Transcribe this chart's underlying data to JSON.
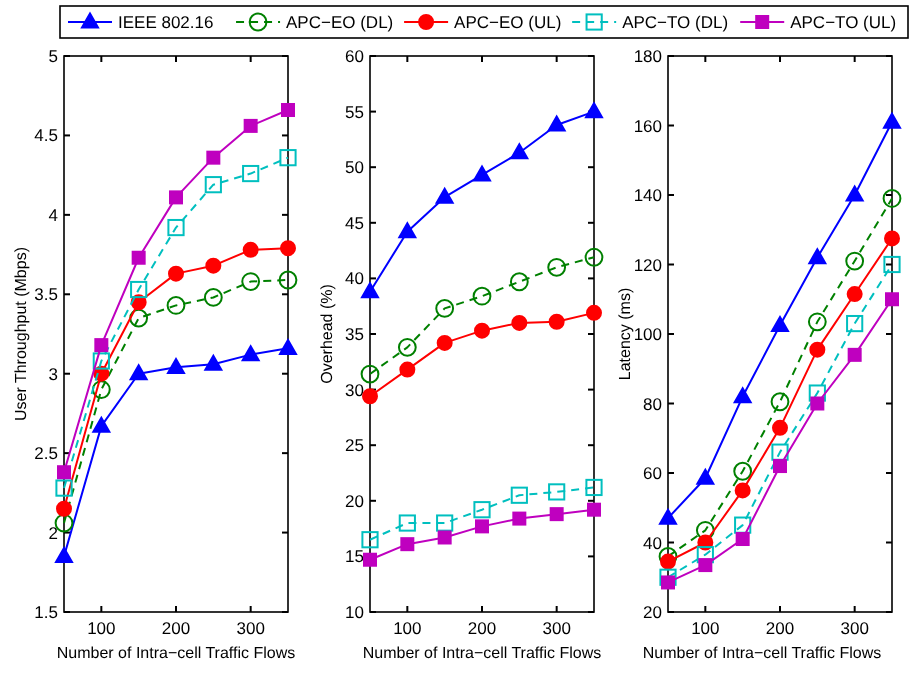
{
  "chart_data": [
    {
      "type": "line",
      "xlabel": "Number of Intra−cell Traffic Flows",
      "ylabel": "User Throughput (Mbps)",
      "x": [
        50,
        100,
        150,
        200,
        250,
        300,
        350
      ],
      "xlim": [
        50,
        350
      ],
      "xticks": [
        100,
        200,
        300
      ],
      "ylim": [
        1.5,
        5
      ],
      "yticks": [
        1.5,
        2,
        2.5,
        3,
        3.5,
        4,
        4.5,
        5
      ],
      "legend": "top",
      "series": [
        {
          "name": "IEEE 802.16",
          "color": "#0000ff",
          "marker": "triangle",
          "line_style": "solid",
          "values": [
            1.85,
            2.67,
            3.0,
            3.04,
            3.06,
            3.12,
            3.16
          ]
        },
        {
          "name": "APC−EO (DL)",
          "color": "#008000",
          "marker": "circle",
          "line_style": "dashed",
          "values": [
            2.06,
            2.9,
            3.35,
            3.43,
            3.48,
            3.58,
            3.59
          ]
        },
        {
          "name": "APC−EO (UL)",
          "color": "#ff0000",
          "marker": "circle",
          "line_style": "solid",
          "values": [
            2.15,
            3.0,
            3.45,
            3.63,
            3.68,
            3.78,
            3.79
          ]
        },
        {
          "name": "APC−TO (DL)",
          "color": "#00bfbf",
          "marker": "square",
          "line_style": "dashed",
          "values": [
            2.28,
            3.08,
            3.53,
            3.92,
            4.19,
            4.26,
            4.36
          ]
        },
        {
          "name": "APC−TO (UL)",
          "color": "#bf00bf",
          "marker": "square",
          "line_style": "solid",
          "values": [
            2.38,
            3.18,
            3.73,
            4.11,
            4.36,
            4.56,
            4.66
          ]
        }
      ]
    },
    {
      "type": "line",
      "xlabel": "Number of Intra−cell Traffic Flows",
      "ylabel": "Overhead (%)",
      "x": [
        50,
        100,
        150,
        200,
        250,
        300,
        350
      ],
      "xlim": [
        50,
        350
      ],
      "xticks": [
        100,
        200,
        300
      ],
      "ylim": [
        10,
        60
      ],
      "yticks": [
        10,
        15,
        20,
        25,
        30,
        35,
        40,
        45,
        50,
        55,
        60
      ],
      "series": [
        {
          "color": "#0000ff",
          "marker": "triangle",
          "line_style": "solid",
          "values": [
            38.8,
            44.2,
            47.3,
            49.3,
            51.3,
            53.8,
            55
          ]
        },
        {
          "color": "#008000",
          "marker": "circle",
          "line_style": "dashed",
          "values": [
            31.4,
            33.8,
            37.3,
            38.4,
            39.7,
            41,
            41.9
          ]
        },
        {
          "color": "#ff0000",
          "marker": "circle",
          "line_style": "solid",
          "values": [
            29.4,
            31.8,
            34.2,
            35.3,
            36,
            36.1,
            36.9
          ]
        },
        {
          "color": "#00bfbf",
          "marker": "square",
          "line_style": "dashed",
          "values": [
            16.5,
            18,
            18,
            19.2,
            20.5,
            20.8,
            21.2
          ]
        },
        {
          "color": "#bf00bf",
          "marker": "square",
          "line_style": "solid",
          "values": [
            14.7,
            16.1,
            16.7,
            17.7,
            18.4,
            18.8,
            19.2
          ]
        }
      ]
    },
    {
      "type": "line",
      "xlabel": "Number of Intra−cell Traffic Flows",
      "ylabel": "Latency (ms)",
      "x": [
        50,
        100,
        150,
        200,
        250,
        300,
        350
      ],
      "xlim": [
        50,
        350
      ],
      "xticks": [
        100,
        200,
        300
      ],
      "ylim": [
        20,
        180
      ],
      "yticks": [
        20,
        40,
        60,
        80,
        100,
        120,
        140,
        160,
        180
      ],
      "series": [
        {
          "color": "#0000ff",
          "marker": "triangle",
          "line_style": "solid",
          "values": [
            47,
            58.5,
            82,
            102.5,
            122,
            140,
            161
          ]
        },
        {
          "color": "#008000",
          "marker": "circle",
          "line_style": "dashed",
          "values": [
            36,
            43.5,
            60.5,
            80.5,
            103.5,
            121,
            139
          ]
        },
        {
          "color": "#ff0000",
          "marker": "circle",
          "line_style": "solid",
          "values": [
            34.5,
            40,
            55,
            73,
            95.5,
            111.5,
            127.5
          ]
        },
        {
          "color": "#00bfbf",
          "marker": "square",
          "line_style": "dashed",
          "values": [
            30,
            36.5,
            45,
            66,
            83,
            103,
            120
          ]
        },
        {
          "color": "#bf00bf",
          "marker": "square",
          "line_style": "solid",
          "values": [
            28.5,
            33.5,
            41,
            62,
            80,
            94,
            110
          ]
        }
      ]
    }
  ]
}
